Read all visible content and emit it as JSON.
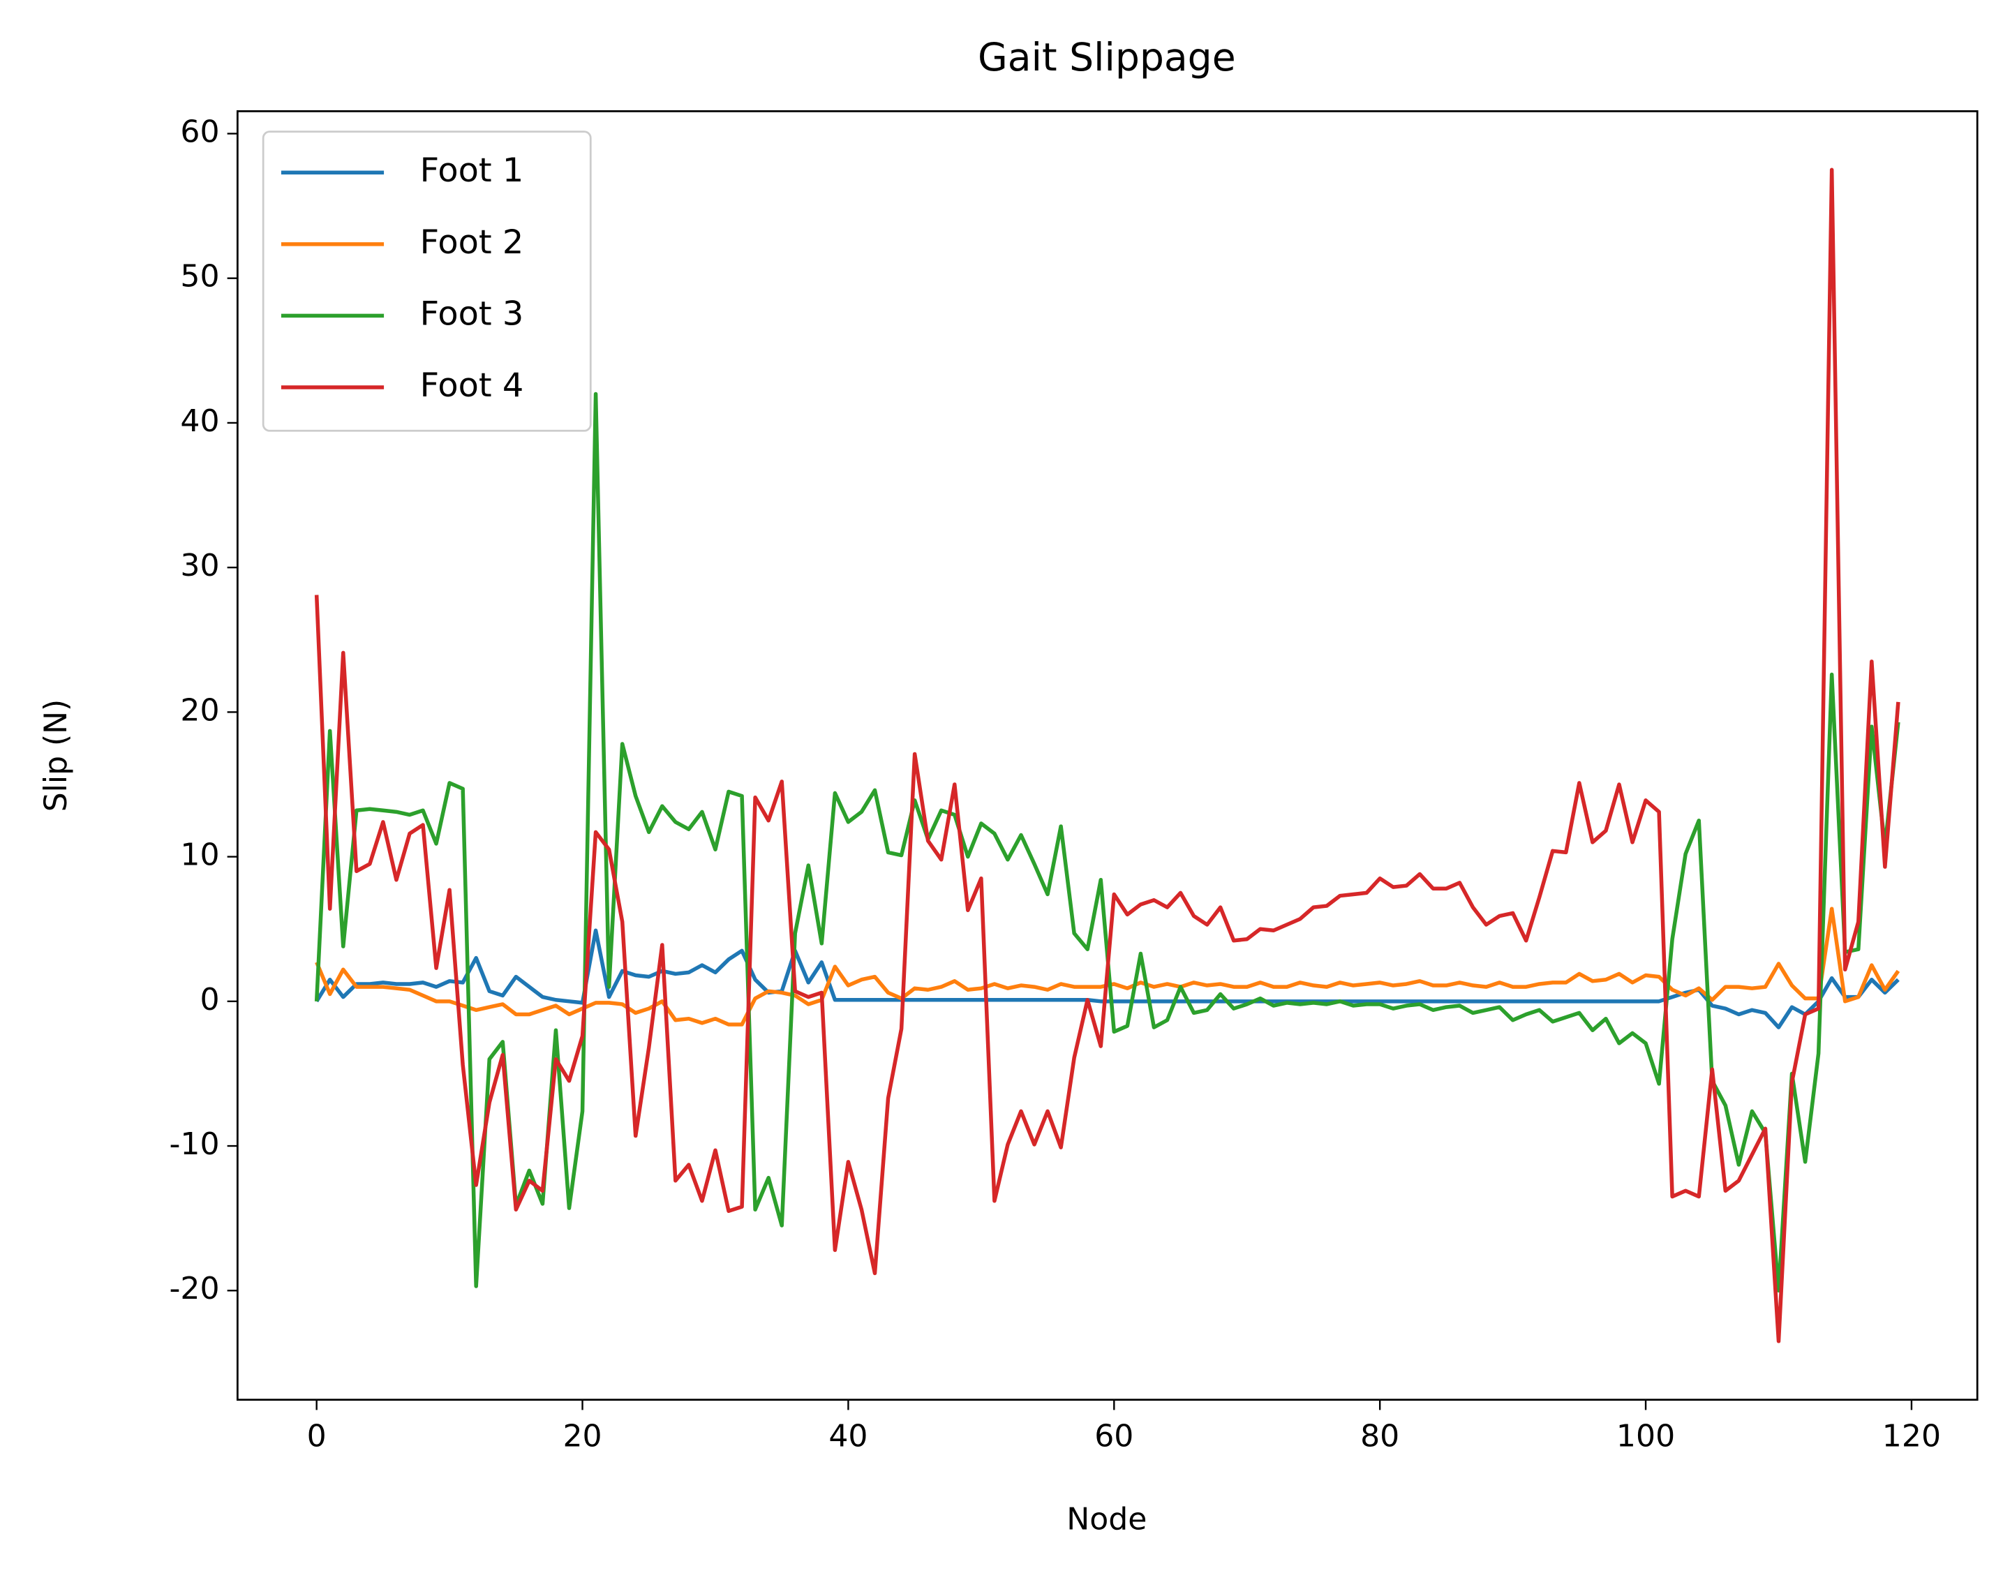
{
  "chart_data": {
    "type": "line",
    "title": "Gait Slippage",
    "x_label": "Node",
    "y_label": "Slip (N)",
    "x": [
      0,
      1,
      2,
      3,
      4,
      5,
      6,
      7,
      8,
      9,
      10,
      11,
      12,
      13,
      14,
      15,
      16,
      17,
      18,
      19,
      20,
      21,
      22,
      23,
      24,
      25,
      26,
      27,
      28,
      29,
      30,
      31,
      32,
      33,
      34,
      35,
      36,
      37,
      38,
      39,
      40,
      41,
      42,
      43,
      44,
      45,
      46,
      47,
      48,
      49,
      50,
      51,
      52,
      53,
      54,
      55,
      56,
      57,
      58,
      59,
      60,
      61,
      62,
      63,
      64,
      65,
      66,
      67,
      68,
      69,
      70,
      71,
      72,
      73,
      74,
      75,
      76,
      77,
      78,
      79,
      80,
      81,
      82,
      83,
      84,
      85,
      86,
      87,
      88,
      89,
      90,
      91,
      92,
      93,
      94,
      95,
      96,
      97,
      98,
      99,
      100,
      101,
      102,
      103,
      104,
      105,
      106,
      107,
      108,
      109,
      110,
      111,
      112,
      113,
      114,
      115,
      116,
      117,
      118,
      119
    ],
    "series": [
      {
        "name": "Foot 1",
        "color": "#1f77b4",
        "values": [
          0,
          1.5,
          0.3,
          1.2,
          1.2,
          1.3,
          1.2,
          1.2,
          1.3,
          1.0,
          1.4,
          1.3,
          3.0,
          0.7,
          0.4,
          1.7,
          1.0,
          0.3,
          0.1,
          0.0,
          -0.1,
          4.9,
          0.3,
          2.1,
          1.8,
          1.7,
          2.1,
          1.9,
          2.0,
          2.5,
          2.0,
          2.9,
          3.5,
          1.5,
          0.6,
          0.7,
          3.5,
          1.3,
          2.7,
          0.1,
          0.1,
          0.1,
          0.1,
          0.1,
          0.1,
          0.1,
          0.1,
          0.1,
          0.1,
          0.1,
          0.1,
          0.1,
          0.1,
          0.1,
          0.1,
          0.1,
          0.1,
          0.1,
          0.1,
          0.0,
          0.0,
          0.0,
          0.0,
          0.0,
          0.0,
          0.0,
          0.0,
          0.0,
          0.0,
          0.0,
          0.0,
          0.0,
          0.0,
          0.0,
          0.0,
          0.0,
          0.0,
          0.0,
          0.0,
          0.0,
          0.0,
          0.0,
          0.0,
          0.0,
          0.0,
          0.0,
          0.0,
          0.0,
          0.0,
          0.0,
          0.0,
          0.0,
          0.0,
          0.0,
          0.0,
          0.0,
          0.0,
          0.0,
          0.0,
          0.0,
          0.0,
          0.0,
          0.3,
          0.6,
          0.8,
          -0.3,
          -0.5,
          -0.9,
          -0.6,
          -0.8,
          -1.8,
          -0.4,
          -0.9,
          0.0,
          1.6,
          0.3,
          0.3,
          1.5,
          0.6,
          1.5
        ]
      },
      {
        "name": "Foot 2",
        "color": "#ff7f0e",
        "values": [
          2.7,
          0.5,
          2.2,
          1.0,
          1.0,
          1.0,
          0.9,
          0.8,
          0.4,
          0.0,
          0.0,
          -0.3,
          -0.6,
          -0.4,
          -0.2,
          -0.9,
          -0.9,
          -0.6,
          -0.3,
          -0.9,
          -0.5,
          -0.1,
          -0.1,
          -0.2,
          -0.8,
          -0.5,
          0.0,
          -1.3,
          -1.2,
          -1.5,
          -1.2,
          -1.6,
          -1.6,
          0.2,
          0.7,
          0.6,
          0.4,
          -0.2,
          0.1,
          2.4,
          1.1,
          1.5,
          1.7,
          0.6,
          0.2,
          0.9,
          0.8,
          1.0,
          1.4,
          0.8,
          0.9,
          1.2,
          0.9,
          1.1,
          1.0,
          0.8,
          1.2,
          1.0,
          1.0,
          1.0,
          1.2,
          0.9,
          1.3,
          1.0,
          1.2,
          1.0,
          1.3,
          1.1,
          1.2,
          1.0,
          1.0,
          1.3,
          1.0,
          1.0,
          1.3,
          1.1,
          1.0,
          1.3,
          1.1,
          1.2,
          1.3,
          1.1,
          1.2,
          1.4,
          1.1,
          1.1,
          1.3,
          1.1,
          1.0,
          1.3,
          1.0,
          1.0,
          1.2,
          1.3,
          1.3,
          1.9,
          1.4,
          1.5,
          1.9,
          1.3,
          1.8,
          1.7,
          0.8,
          0.4,
          0.9,
          0.1,
          1.0,
          1.0,
          0.9,
          1.0,
          2.6,
          1.1,
          0.2,
          0.2,
          6.4,
          0.0,
          0.3,
          2.5,
          0.8,
          2.1
        ]
      },
      {
        "name": "Foot 3",
        "color": "#2ca02c",
        "values": [
          0.0,
          18.7,
          3.8,
          13.2,
          13.3,
          13.2,
          13.1,
          12.9,
          13.2,
          10.9,
          15.1,
          14.7,
          -19.7,
          -4.0,
          -2.8,
          -14.1,
          -11.7,
          -14.0,
          -2.0,
          -14.3,
          -7.6,
          42.0,
          1.0,
          17.8,
          14.2,
          11.7,
          13.5,
          12.4,
          11.9,
          13.1,
          10.5,
          14.5,
          14.2,
          -14.4,
          -12.2,
          -15.5,
          4.7,
          9.4,
          4.0,
          14.4,
          12.4,
          13.1,
          14.6,
          10.3,
          10.1,
          13.9,
          11.2,
          13.2,
          12.9,
          10.0,
          12.3,
          11.6,
          9.8,
          11.5,
          9.5,
          7.4,
          12.1,
          4.7,
          3.6,
          8.4,
          -2.1,
          -1.7,
          3.3,
          -1.8,
          -1.3,
          1.0,
          -0.8,
          -0.6,
          0.5,
          -0.5,
          -0.2,
          0.2,
          -0.3,
          -0.1,
          -0.2,
          -0.1,
          -0.2,
          0.0,
          -0.3,
          -0.2,
          -0.2,
          -0.5,
          -0.3,
          -0.2,
          -0.6,
          -0.4,
          -0.3,
          -0.8,
          -0.6,
          -0.4,
          -1.3,
          -0.9,
          -0.6,
          -1.4,
          -1.1,
          -0.8,
          -2.0,
          -1.2,
          -2.9,
          -2.2,
          -2.9,
          -5.7,
          4.3,
          10.2,
          12.5,
          -5.5,
          -7.2,
          -11.3,
          -7.6,
          -9.1,
          -20.0,
          -5.0,
          -11.1,
          -3.6,
          22.6,
          3.4,
          3.6,
          19.0,
          10.7,
          19.3
        ]
      },
      {
        "name": "Foot 4",
        "color": "#d62728",
        "values": [
          28.1,
          6.4,
          24.1,
          9.0,
          9.5,
          12.4,
          8.4,
          11.6,
          12.2,
          2.3,
          7.7,
          -4.4,
          -12.7,
          -7.0,
          -3.7,
          -14.4,
          -12.4,
          -13.1,
          -4.0,
          -5.5,
          -2.4,
          11.7,
          10.5,
          5.5,
          -9.3,
          -3.2,
          3.9,
          -12.4,
          -11.3,
          -13.8,
          -10.3,
          -14.5,
          -14.2,
          14.1,
          12.5,
          15.2,
          0.7,
          0.3,
          0.6,
          -17.2,
          -11.1,
          -14.4,
          -18.8,
          -6.7,
          -1.9,
          17.1,
          11.1,
          9.8,
          15.0,
          6.3,
          8.5,
          -13.8,
          -9.9,
          -7.6,
          -9.9,
          -7.6,
          -10.1,
          -3.9,
          0.1,
          -3.1,
          7.4,
          6.0,
          6.7,
          7.0,
          6.5,
          7.5,
          5.9,
          5.3,
          6.5,
          4.2,
          4.3,
          5.0,
          4.9,
          5.3,
          5.7,
          6.5,
          6.6,
          7.3,
          7.4,
          7.5,
          8.5,
          7.9,
          8.0,
          8.8,
          7.8,
          7.8,
          8.2,
          6.5,
          5.3,
          5.9,
          6.1,
          4.2,
          7.2,
          10.4,
          10.3,
          15.1,
          11.0,
          11.8,
          15.0,
          11.0,
          13.9,
          13.1,
          -13.5,
          -13.1,
          -13.5,
          -4.7,
          -13.1,
          -12.4,
          -10.6,
          -8.8,
          -23.5,
          -5.6,
          -0.9,
          -0.5,
          57.5,
          2.2,
          5.5,
          23.5,
          9.3,
          20.7
        ]
      }
    ],
    "xlim": [
      -5.95,
      124.95
    ],
    "ylim": [
      -27.55,
      61.55
    ],
    "xticks": [
      0,
      20,
      40,
      60,
      80,
      100,
      120
    ],
    "yticks": [
      -20,
      -10,
      0,
      10,
      20,
      30,
      40,
      50,
      60
    ],
    "legend": "upper left"
  }
}
